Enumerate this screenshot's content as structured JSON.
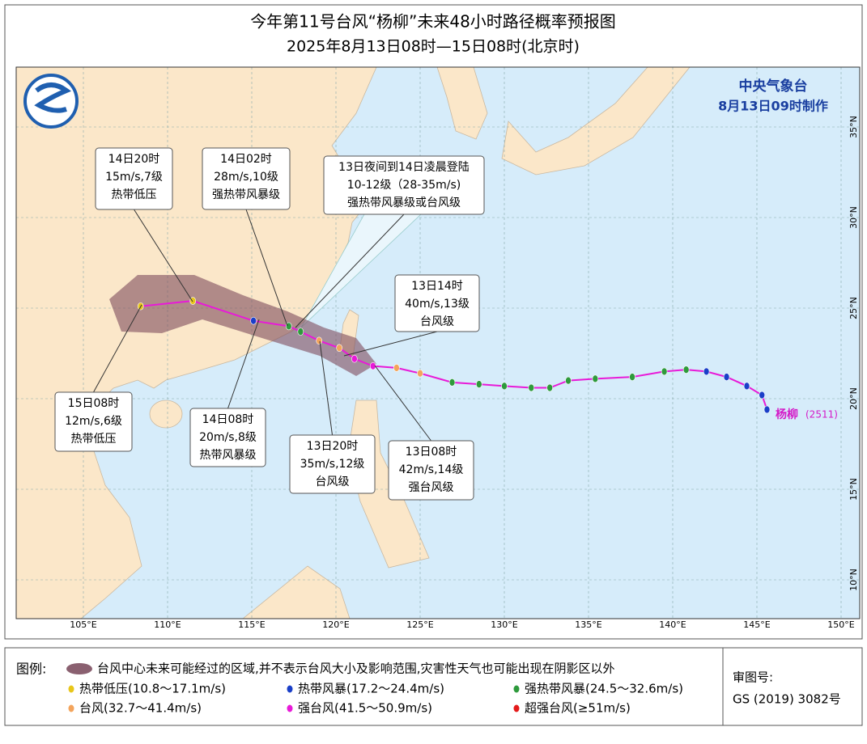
{
  "title": "今年第11号台风“杨柳”未来48小时路径概率预报图",
  "subtitle": "2025年8月13日08时—15日08时(北京时)",
  "agency": "中央气象台",
  "issued": "8月13日09时制作",
  "lon_ticks": [
    {
      "value": 105,
      "label": "105°E"
    },
    {
      "value": 110,
      "label": "110°E"
    },
    {
      "value": 115,
      "label": "115°E"
    },
    {
      "value": 120,
      "label": "120°E"
    },
    {
      "value": 125,
      "label": "125°E"
    },
    {
      "value": 130,
      "label": "130°E"
    },
    {
      "value": 135,
      "label": "135°E"
    },
    {
      "value": 140,
      "label": "140°E"
    },
    {
      "value": 145,
      "label": "145°E"
    },
    {
      "value": 150,
      "label": "150°E"
    }
  ],
  "lat_ticks": [
    {
      "value": 35,
      "label": "35°N"
    },
    {
      "value": 30,
      "label": "30°N"
    },
    {
      "value": 25,
      "label": "25°N"
    },
    {
      "value": 20,
      "label": "20°N"
    },
    {
      "value": 15,
      "label": "15°N"
    },
    {
      "value": 10,
      "label": "10°N"
    }
  ],
  "storm": {
    "name": "杨柳",
    "code": "(2511)"
  },
  "track": {
    "points": [
      {
        "lon": 145.6,
        "lat": 19.4,
        "level": 1
      },
      {
        "lon": 145.3,
        "lat": 20.2,
        "level": 1
      },
      {
        "lon": 144.4,
        "lat": 20.7,
        "level": 1
      },
      {
        "lon": 143.2,
        "lat": 21.2,
        "level": 1
      },
      {
        "lon": 142.0,
        "lat": 21.5,
        "level": 1
      },
      {
        "lon": 140.8,
        "lat": 21.6,
        "level": 2
      },
      {
        "lon": 139.5,
        "lat": 21.5,
        "level": 2
      },
      {
        "lon": 137.6,
        "lat": 21.2,
        "level": 2
      },
      {
        "lon": 135.4,
        "lat": 21.1,
        "level": 2
      },
      {
        "lon": 133.8,
        "lat": 21.0,
        "level": 2
      },
      {
        "lon": 132.7,
        "lat": 20.6,
        "level": 2
      },
      {
        "lon": 131.6,
        "lat": 20.6,
        "level": 2
      },
      {
        "lon": 130.0,
        "lat": 20.7,
        "level": 2
      },
      {
        "lon": 128.5,
        "lat": 20.8,
        "level": 2
      },
      {
        "lon": 126.9,
        "lat": 20.9,
        "level": 2
      },
      {
        "lon": 125.0,
        "lat": 21.4,
        "level": 3
      },
      {
        "lon": 123.6,
        "lat": 21.7,
        "level": 3
      },
      {
        "lon": 122.2,
        "lat": 21.8,
        "level": 4
      },
      {
        "lon": 121.1,
        "lat": 22.2,
        "level": 4
      },
      {
        "lon": 120.2,
        "lat": 22.8,
        "level": 3
      },
      {
        "lon": 119.0,
        "lat": 23.2,
        "level": 3
      },
      {
        "lon": 117.9,
        "lat": 23.7,
        "level": 2
      },
      {
        "lon": 117.2,
        "lat": 24.0,
        "level": 2
      },
      {
        "lon": 115.1,
        "lat": 24.3,
        "level": 1
      },
      {
        "lon": 111.5,
        "lat": 25.4,
        "level": 0
      },
      {
        "lon": 108.4,
        "lat": 25.1,
        "level": 0
      }
    ]
  },
  "callouts": [
    {
      "lines": [
        "14日20时",
        "15m/s,7级",
        "热带低压"
      ]
    },
    {
      "lines": [
        "14日02时",
        "28m/s,10级",
        "强热带风暴级"
      ]
    },
    {
      "lines": [
        "13日夜间到14日凌晨登陆",
        "10-12级（28-35m/s)",
        "强热带风暴级或台风级"
      ]
    },
    {
      "lines": [
        "13日14时",
        "40m/s,13级",
        "台风级"
      ]
    },
    {
      "lines": [
        "15日08时",
        "12m/s,6级",
        "热带低压"
      ]
    },
    {
      "lines": [
        "14日08时",
        "20m/s,8级",
        "热带风暴级"
      ]
    },
    {
      "lines": [
        "13日20时",
        "35m/s,12级",
        "台风级"
      ]
    },
    {
      "lines": [
        "13日08时",
        "42m/s,14级",
        "强台风级"
      ]
    }
  ],
  "legend": {
    "title": "图例:",
    "area_text": "台风中心未来可能经过的区域,并不表示台风大小及影响范围,灾害性天气也可能出现在阴影区以外",
    "levels": [
      {
        "label": "热带低压(10.8～17.1m/s)",
        "color": "#e8c619"
      },
      {
        "label": "热带风暴(17.2～24.4m/s)",
        "color": "#1a3fc8"
      },
      {
        "label": "强热带风暴(24.5～32.6m/s)",
        "color": "#2e9a3c"
      },
      {
        "label": "台风(32.7～41.4m/s)",
        "color": "#f3a45c"
      },
      {
        "label": "强台风(41.5～50.9m/s)",
        "color": "#e81ad8"
      },
      {
        "label": "超强台风(≥51m/s)",
        "color": "#e41a1a"
      }
    ]
  },
  "approval": {
    "label": "审图号:",
    "number": "GS (2019) 3082号"
  }
}
